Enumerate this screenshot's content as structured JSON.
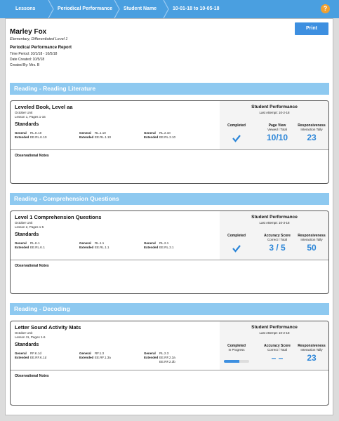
{
  "breadcrumbs": [
    "Lessons",
    "Periodical Performance",
    "Student Name",
    "10-01-18 to 10-05-18"
  ],
  "help": "?",
  "header": {
    "name": "Marley Fox",
    "subtitle": "Elementary, Differentiated Level 1",
    "report_title": "Periodical Performance Report",
    "time_period": "Time Period: 10/1/18 - 10/5/18",
    "date_created": "Date Created: 10/5/18",
    "created_by": "Created By: Mrs. B"
  },
  "print_button": "Print",
  "sections": [
    {
      "title": "Reading - Reading Literature",
      "activity": {
        "title": "Leveled Book, Level aa",
        "unit": "October Unit",
        "lesson": "Lesson 1, Pages 1-16"
      },
      "standards_label": "Standards",
      "standards": [
        {
          "general_label": "General",
          "general": "RL.K.10",
          "extended_label": "Extended",
          "extended": [
            "EE.RL.K.10"
          ]
        },
        {
          "general_label": "General",
          "general": "RL.1.10",
          "extended_label": "Extended",
          "extended": [
            "EE.RL.1.10"
          ]
        },
        {
          "general_label": "General",
          "general": "RL.2.10",
          "extended_label": "Extended",
          "extended": [
            "EE.RL.2.10"
          ]
        }
      ],
      "performance": {
        "title": "Student Performance",
        "last_attempt": "Last Attempt: 10-2-18",
        "metrics": [
          {
            "label": "Completed",
            "icon": "check"
          },
          {
            "label": "Page View",
            "sublabel": "Viewed / Total",
            "value": "10/10"
          },
          {
            "label": "Responsiveness",
            "sublabel": "Interaction Tally",
            "value": "23"
          }
        ]
      },
      "notes_label": "Observational Notes"
    },
    {
      "title": "Reading - Comprehension Questions",
      "activity": {
        "title": "Level 1 Comprehension Questions",
        "unit": "October Unit",
        "lesson": "Lesson 2, Pages 1-5"
      },
      "standards_label": "Standards",
      "standards": [
        {
          "general_label": "General",
          "general": "RL.K.1",
          "extended_label": "Extended",
          "extended": [
            "EE.RL.K.1"
          ]
        },
        {
          "general_label": "General",
          "general": "RL.1.1",
          "extended_label": "Extended",
          "extended": [
            "EE.RL.1.1"
          ]
        },
        {
          "general_label": "General",
          "general": "RL.2.1",
          "extended_label": "Extended",
          "extended": [
            "EE.RL.2.1"
          ]
        }
      ],
      "performance": {
        "title": "Student Performance",
        "last_attempt": "Last Attempt: 10-3-18",
        "metrics": [
          {
            "label": "Completed",
            "icon": "check"
          },
          {
            "label": "Accuracy Score",
            "sublabel": "Correct / Total",
            "value": "3 / 5"
          },
          {
            "label": "Responsiveness",
            "sublabel": "Interaction Tally",
            "value": "50"
          }
        ]
      },
      "notes_label": "Observational Notes"
    },
    {
      "title": "Reading - Decoding",
      "activity": {
        "title": "Letter Sound Activity Mats",
        "unit": "October Unit",
        "lesson": "Lesson 11, Pages 1-6"
      },
      "standards_label": "Standards",
      "standards": [
        {
          "general_label": "General",
          "general": "RF.K.1d",
          "extended_label": "Extended",
          "extended": [
            "EE.RF.K.1d"
          ]
        },
        {
          "general_label": "General",
          "general": "RF.1.3",
          "extended_label": "Extended",
          "extended": [
            "EE.RF.1.3a"
          ]
        },
        {
          "general_label": "General",
          "general": "RL.2.3",
          "extended_label": "Extended",
          "extended": [
            "EE.RF.2.3a",
            "EE.RF.2.3b"
          ]
        }
      ],
      "performance": {
        "title": "Student Performance",
        "last_attempt": "Last Attempt: 10-2-18",
        "metrics": [
          {
            "label": "Completed",
            "sublabel": "In Progress",
            "progress": 60
          },
          {
            "label": "Accuracy Score",
            "sublabel": "Correct / Total",
            "value": "– –"
          },
          {
            "label": "Responsiveness",
            "sublabel": "Interaction Tally",
            "value": "23"
          }
        ]
      },
      "notes_label": "Observational Notes"
    }
  ]
}
